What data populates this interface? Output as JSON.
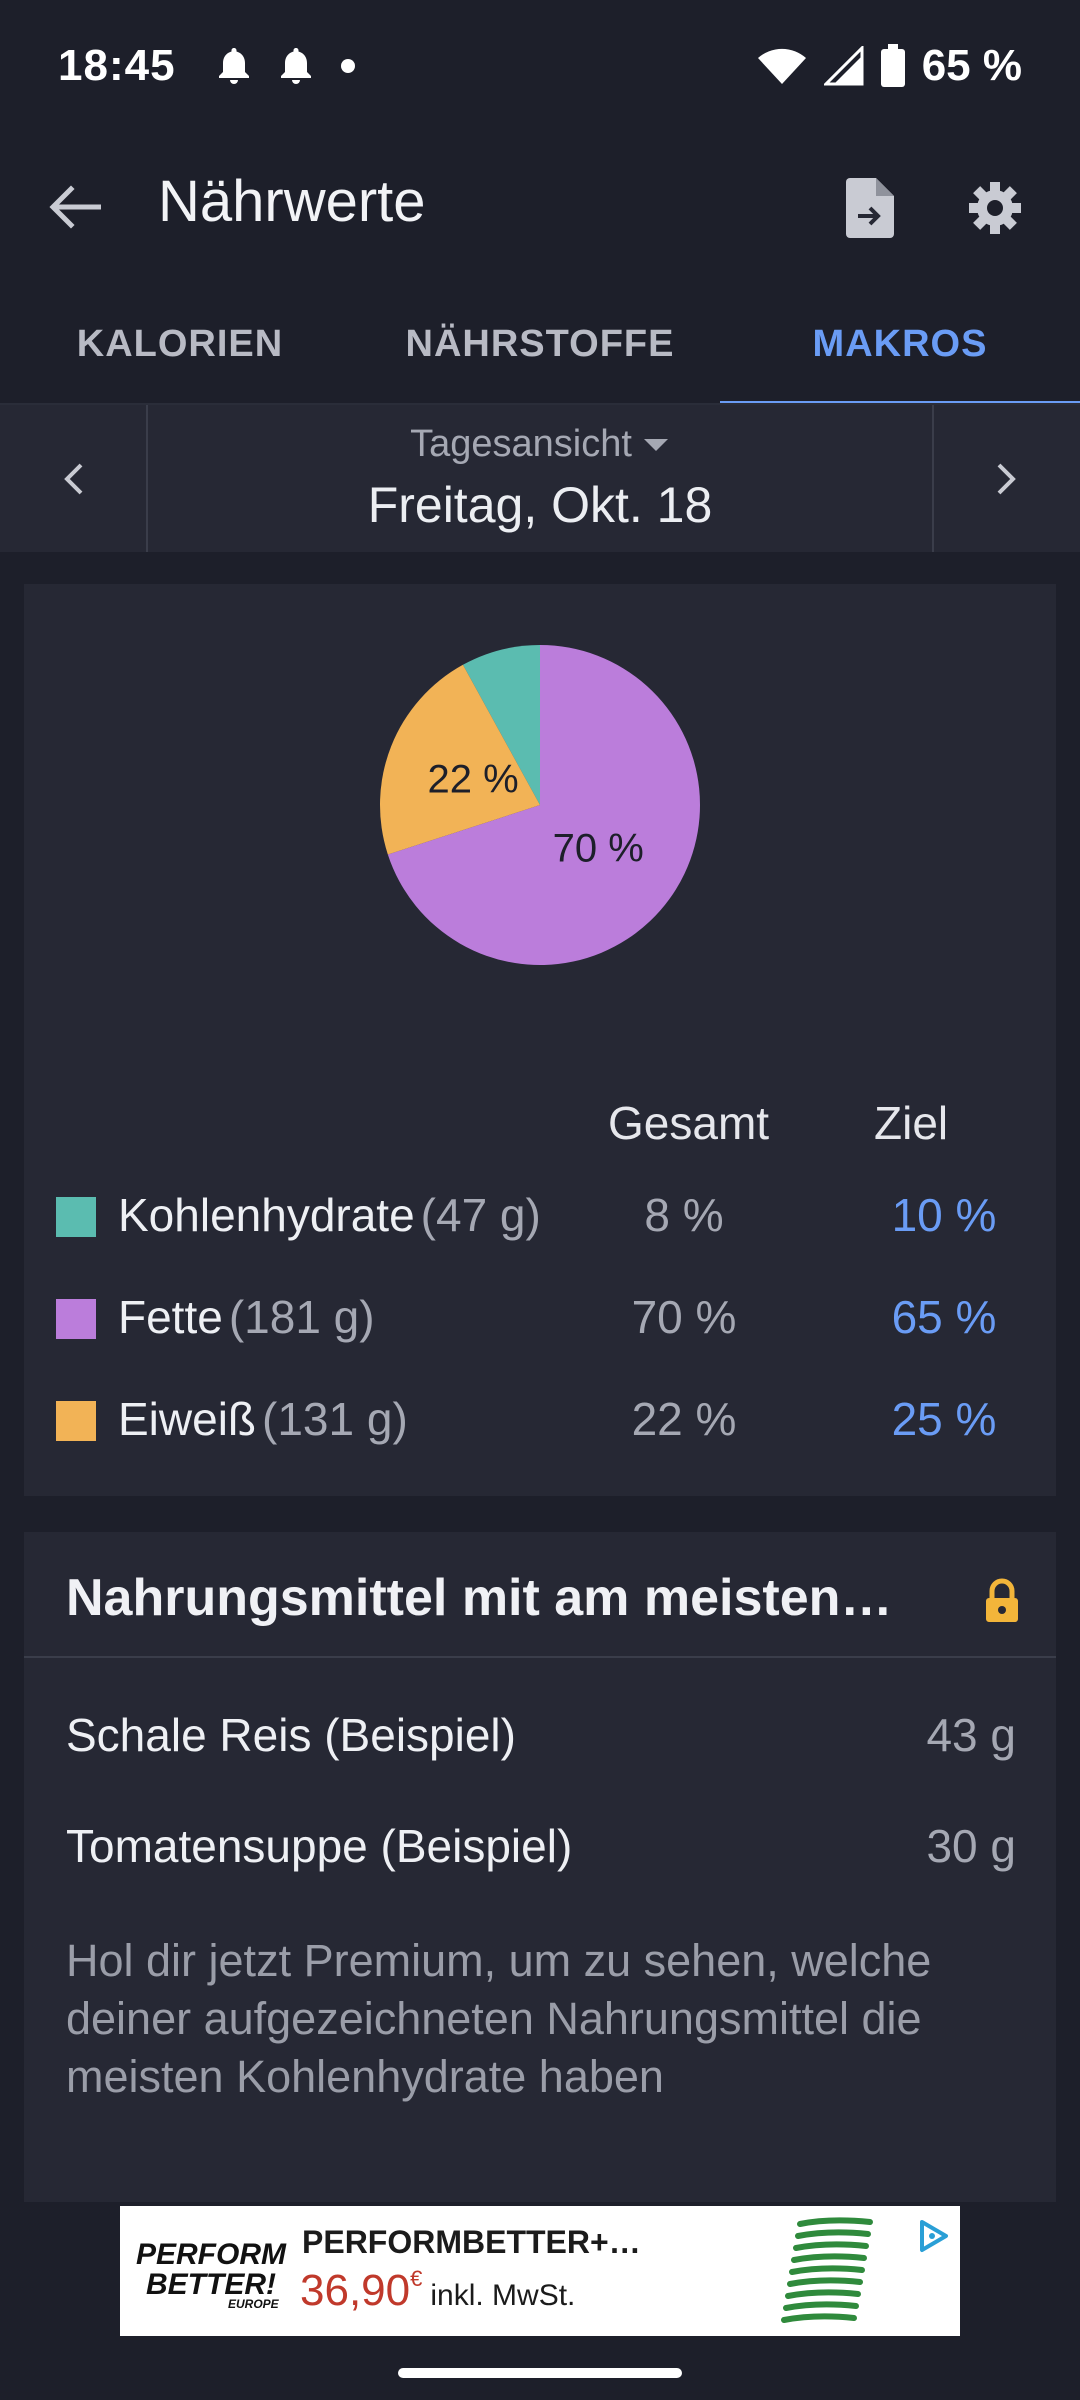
{
  "status_bar": {
    "time": "18:45",
    "battery": "65 %",
    "icons": [
      "bell-icon",
      "bell-icon",
      "dot-icon",
      "wifi-icon",
      "signal-icon",
      "battery-icon"
    ]
  },
  "app_bar": {
    "title": "Nährwerte",
    "icons": [
      "back-arrow-icon",
      "export-document-icon",
      "gear-icon"
    ]
  },
  "tabs": [
    {
      "label": "KALORIEN",
      "active": false
    },
    {
      "label": "NÄHRSTOFFE",
      "active": false
    },
    {
      "label": "MAKROS",
      "active": true
    }
  ],
  "date_nav": {
    "view_label": "Tagesansicht",
    "date": "Freitag, Okt. 18"
  },
  "macros": {
    "header_total": "Gesamt",
    "header_goal": "Ziel",
    "rows": [
      {
        "name": "Kohlenhydrate",
        "amount": "(47 g)",
        "total": "8 %",
        "goal": "10 %",
        "color": "#5bbcb0"
      },
      {
        "name": "Fette",
        "amount": "(181 g)",
        "total": "70 %",
        "goal": "65 %",
        "color": "#bb7ddb"
      },
      {
        "name": "Eiweiß",
        "amount": "(131 g)",
        "total": "22 %",
        "goal": "25 %",
        "color": "#f2b356"
      }
    ]
  },
  "chart_data": {
    "type": "pie",
    "categories": [
      "Kohlenhydrate",
      "Fette",
      "Eiweiß"
    ],
    "values": [
      8,
      70,
      22
    ],
    "labels": [
      "",
      "70 %",
      "22 %"
    ],
    "colors": [
      "#5bbcb0",
      "#bb7ddb",
      "#f2b356"
    ]
  },
  "top_foods": {
    "title": "Nahrungsmittel mit am meisten…",
    "items": [
      {
        "name": "Schale Reis (Beispiel)",
        "value": "43 g"
      },
      {
        "name": "Tomatensuppe (Beispiel)",
        "value": "30 g"
      }
    ],
    "premium_text": "Hol dir jetzt Premium, um zu sehen, welche deiner aufgezeichneten Nahrungsmittel die meisten Kohlenhydrate haben"
  },
  "ad": {
    "title": "PERFORMBETTER+…",
    "price": "36,90",
    "currency": "€",
    "tax": "inkl. MwSt.",
    "logo_line1": "PERFORM",
    "logo_line2": "BETTER!",
    "logo_line3": "EUROPE"
  }
}
